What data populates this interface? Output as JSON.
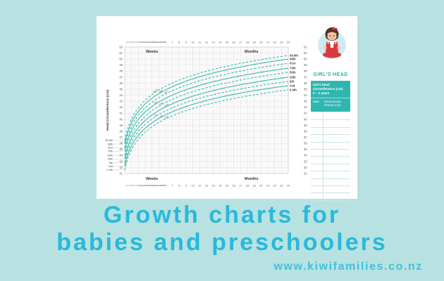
{
  "page": {
    "background": "#b7e2e1",
    "card_background": "#ffffff"
  },
  "title": {
    "line1": "Growth charts for",
    "line2": "babies and preschoolers",
    "color": "#29b9da"
  },
  "website": "www.kiwifamilies.co.nz",
  "panel": {
    "heading": "GIRL'S HEAD",
    "box_title_l1": "Girl's head",
    "box_title_l2": "circumference (cm)",
    "box_title_l3": "0 – 2 years",
    "col_date": "Date",
    "col_head_l1": "Head circum-",
    "col_head_l2": "ference (cm)",
    "empty_rows": 12,
    "accent": "#2eb7b0",
    "heading_color": "#2bb3aa",
    "girl_icon": "girl-sitting-illustration"
  },
  "chart_data": {
    "type": "line",
    "title": "Girl's head circumference (cm) 0–2 years",
    "ylabel": "Head Circumference (cm)",
    "y_min": 31,
    "y_max": 52,
    "y_tick_step": 1,
    "x_axis": {
      "weeks_label": "Weeks",
      "months_label": "Months",
      "week_ticks_start": 1,
      "week_ticks_end": 26,
      "month_ticks_start": 7,
      "month_ticks_end": 24,
      "total_months": 24
    },
    "legend_position": "curve-ends",
    "grid": true,
    "line_color": "#35bcae",
    "series": [
      {
        "name": "99.6th",
        "style": "dashed",
        "birth_cm": 36.5,
        "cm_24m": 50.6
      },
      {
        "name": "98th",
        "style": "solid",
        "birth_cm": 35.9,
        "cm_24m": 50.0
      },
      {
        "name": "91st",
        "style": "dashed",
        "birth_cm": 35.3,
        "cm_24m": 49.3
      },
      {
        "name": "75th",
        "style": "solid",
        "birth_cm": 34.7,
        "cm_24m": 48.5
      },
      {
        "name": "50th",
        "style": "dashed",
        "birth_cm": 34.0,
        "cm_24m": 47.8
      },
      {
        "name": "25th",
        "style": "solid",
        "birth_cm": 33.4,
        "cm_24m": 47.0
      },
      {
        "name": "9th",
        "style": "dashed",
        "birth_cm": 32.8,
        "cm_24m": 46.3
      },
      {
        "name": "2nd",
        "style": "solid",
        "birth_cm": 32.2,
        "cm_24m": 45.6
      },
      {
        "name": "0.4th",
        "style": "dashed",
        "birth_cm": 31.6,
        "cm_24m": 44.9
      }
    ],
    "growth_model": "v(m) = birth_cm + (cm_24m - birth_cm) * ln(1+1.5m)/ln(37)"
  }
}
